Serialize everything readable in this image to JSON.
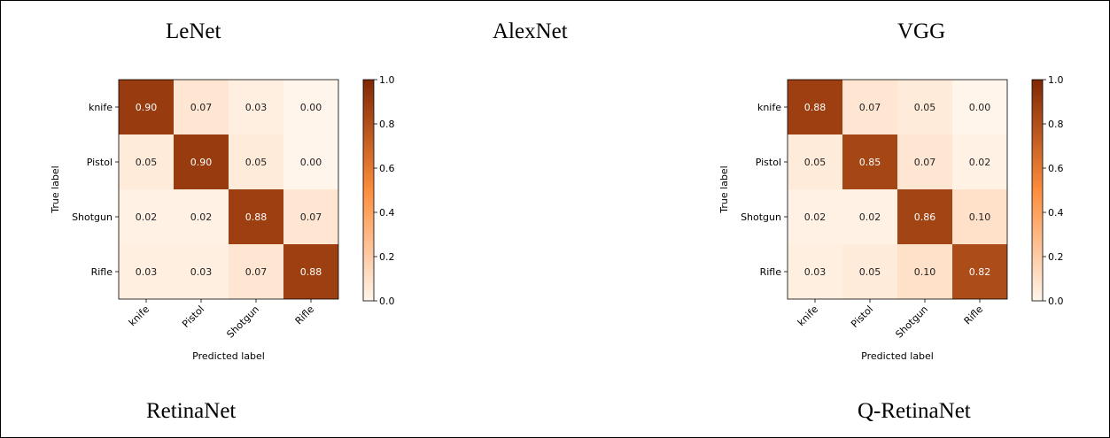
{
  "titles": {
    "lenet": "LeNet",
    "alexnet": "AlexNet",
    "vgg": "VGG",
    "retinanet": "RetinaNet",
    "qretinanet": "Q-RetinaNet"
  },
  "colormap": {
    "low": "#fff5eb",
    "mid": "#fd8d3c",
    "high": "#7f2704"
  },
  "chart_data": [
    {
      "type": "heatmap",
      "categories_x": [
        "knife",
        "Pistol",
        "Shotgun",
        "Rifle"
      ],
      "categories_y": [
        "knife",
        "Pistol",
        "Shotgun",
        "Rifle"
      ],
      "values": [
        [
          0.9,
          0.07,
          0.03,
          0.0
        ],
        [
          0.05,
          0.9,
          0.05,
          0.0
        ],
        [
          0.02,
          0.02,
          0.88,
          0.07
        ],
        [
          0.03,
          0.03,
          0.07,
          0.88
        ]
      ],
      "xlabel": "Predicted label",
      "ylabel": "True label",
      "colorbar": {
        "range": [
          0.0,
          1.0
        ],
        "ticks": [
          "0.0",
          "0.2",
          "0.4",
          "0.6",
          "0.8",
          "1.0"
        ]
      }
    },
    {
      "type": "heatmap",
      "categories_x": [
        "knife",
        "Pistol",
        "Shotgun",
        "Rifle"
      ],
      "categories_y": [
        "knife",
        "Pistol",
        "Shotgun",
        "Rifle"
      ],
      "values": [
        [
          0.88,
          0.07,
          0.05,
          0.0
        ],
        [
          0.05,
          0.85,
          0.07,
          0.02
        ],
        [
          0.02,
          0.02,
          0.86,
          0.1
        ],
        [
          0.03,
          0.05,
          0.1,
          0.82
        ]
      ],
      "xlabel": "Predicted label",
      "ylabel": "True label",
      "colorbar": {
        "range": [
          0.0,
          1.0
        ],
        "ticks": [
          "0.0",
          "0.2",
          "0.4",
          "0.6",
          "0.8",
          "1.0"
        ]
      }
    }
  ]
}
